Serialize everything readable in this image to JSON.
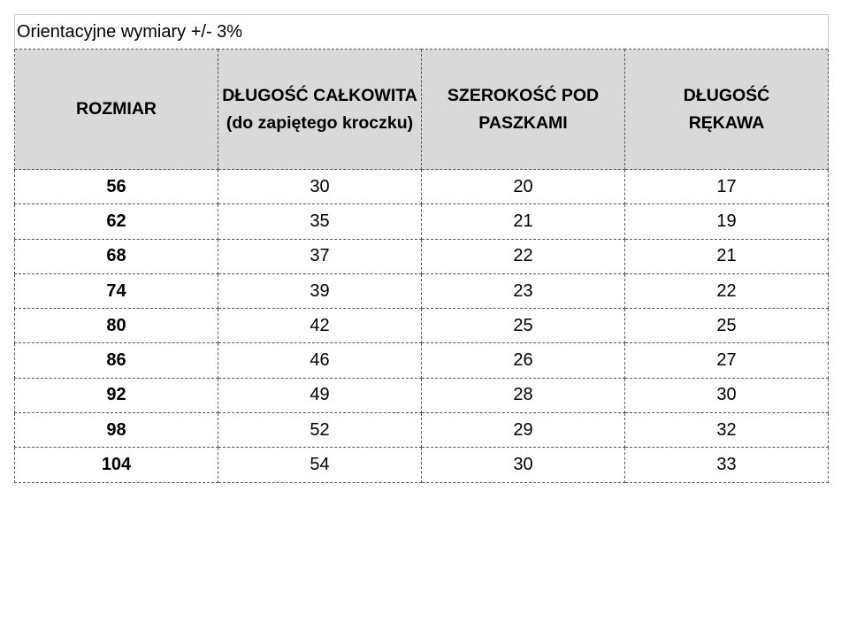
{
  "title": "Orientacyjne wymiary +/- 3%",
  "headers": [
    "ROZMIAR",
    "DŁUGOŚĆ CAŁKOWITA (do zapiętego kroczku)",
    "SZEROKOŚĆ POD PASZKAMI",
    "DŁUGOŚĆ RĘKAWA"
  ],
  "rows": [
    [
      "56",
      "30",
      "20",
      "17"
    ],
    [
      "62",
      "35",
      "21",
      "19"
    ],
    [
      "68",
      "37",
      "22",
      "21"
    ],
    [
      "74",
      "39",
      "23",
      "22"
    ],
    [
      "80",
      "42",
      "25",
      "25"
    ],
    [
      "86",
      "46",
      "26",
      "27"
    ],
    [
      "92",
      "49",
      "28",
      "30"
    ],
    [
      "98",
      "52",
      "29",
      "32"
    ],
    [
      "104",
      "54",
      "30",
      "33"
    ]
  ],
  "colors": {
    "header_bg": "#d9d9d9"
  }
}
